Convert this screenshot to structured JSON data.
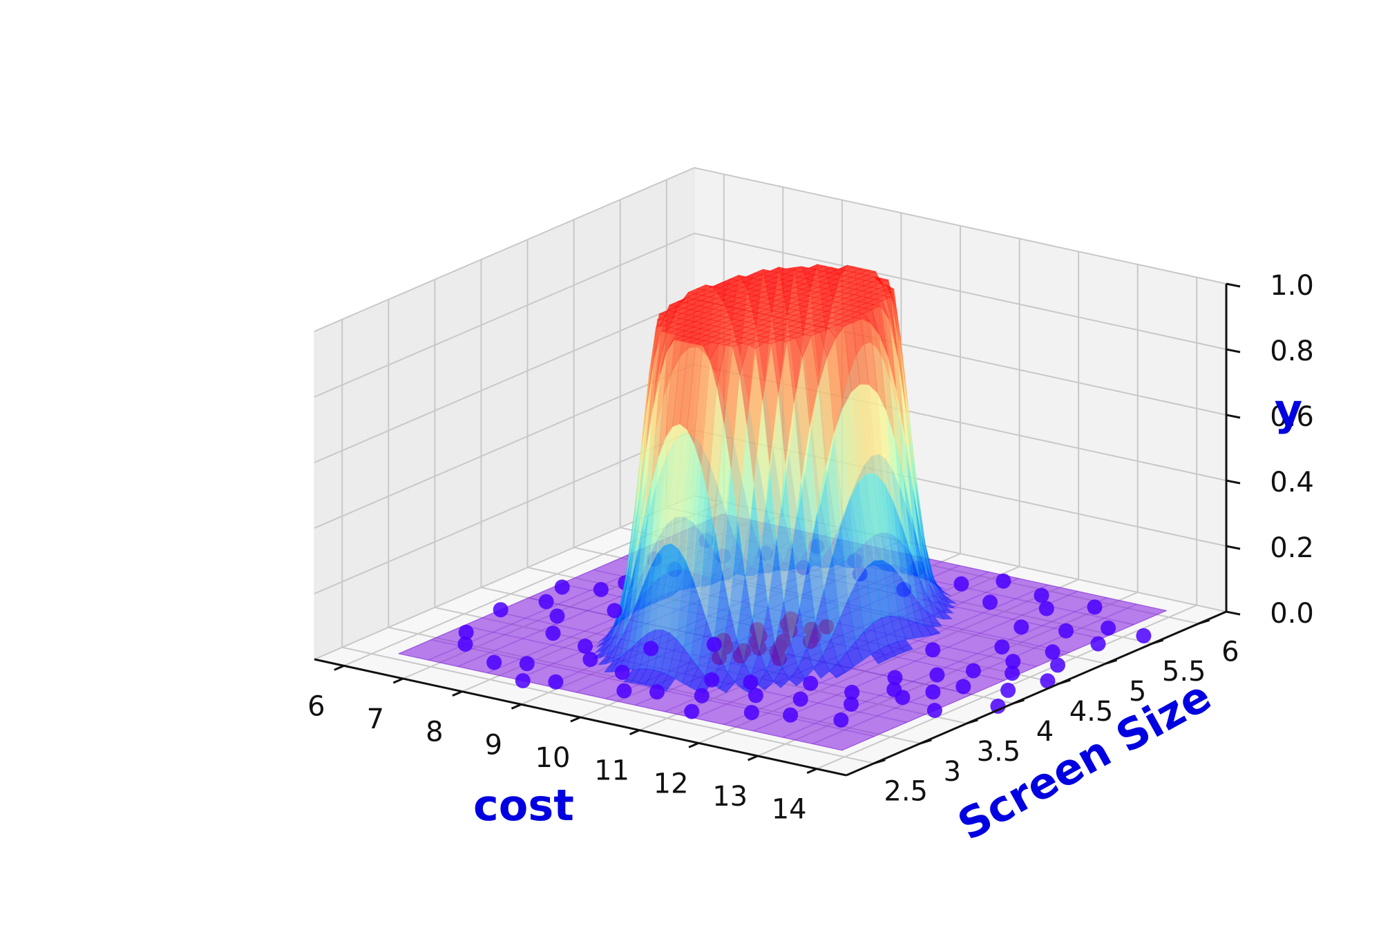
{
  "chart_data": {
    "type": "surface",
    "subtype": "3d-surface-with-scatter",
    "xlabel": "cost",
    "ylabel": "Screen Size",
    "zlabel": "y",
    "x_ticks": [
      "6",
      "7",
      "8",
      "9",
      "10",
      "11",
      "12",
      "13",
      "14"
    ],
    "y_ticks": [
      "2.5",
      "3",
      "3.5",
      "4",
      "4.5",
      "5",
      "5.5",
      "6"
    ],
    "z_ticks": [
      "0.0",
      "0.2",
      "0.4",
      "0.6",
      "0.8",
      "1.0"
    ],
    "xlim": [
      5.5,
      14.5
    ],
    "ylim": [
      2.2,
      6.3
    ],
    "zlim": [
      0,
      1
    ],
    "label_color": "#0000e0",
    "colormap": "rainbow",
    "grid": true,
    "surface": {
      "description": "probability surface peaking at 1 near cost 10, screen size 4.3, near 0 elsewhere",
      "peak": {
        "x": 10.0,
        "y": 4.3,
        "z": 1.0
      }
    },
    "series": [
      {
        "color": "#4b00ff",
        "points": [
          [
            6.6,
            4.0
          ],
          [
            6.7,
            5.1
          ],
          [
            6.8,
            5.6
          ],
          [
            6.4,
            4.3
          ],
          [
            6.3,
            3.7
          ],
          [
            6.5,
            3.2
          ],
          [
            6.8,
            3.0
          ],
          [
            7.0,
            4.6
          ],
          [
            7.2,
            5.0
          ],
          [
            7.4,
            5.4
          ],
          [
            7.5,
            3.5
          ],
          [
            7.6,
            4.1
          ],
          [
            7.6,
            2.8
          ],
          [
            8.0,
            2.9
          ],
          [
            8.2,
            3.4
          ],
          [
            8.4,
            2.6
          ],
          [
            8.6,
            3.2
          ],
          [
            8.8,
            2.7
          ],
          [
            9.0,
            3.6
          ],
          [
            9.3,
            3.1
          ],
          [
            9.6,
            3.9
          ],
          [
            9.8,
            2.8
          ],
          [
            10.2,
            2.9
          ],
          [
            10.5,
            3.3
          ],
          [
            10.8,
            3.0
          ],
          [
            11.0,
            3.4
          ],
          [
            11.1,
            2.7
          ],
          [
            11.4,
            3.2
          ],
          [
            11.8,
            2.9
          ],
          [
            12.0,
            3.3
          ],
          [
            12.3,
            3.0
          ],
          [
            12.4,
            3.6
          ],
          [
            12.5,
            4.0
          ],
          [
            12.7,
            3.4
          ],
          [
            12.8,
            3.8
          ],
          [
            12.9,
            4.2
          ],
          [
            13.0,
            3.1
          ],
          [
            13.1,
            3.7
          ],
          [
            13.2,
            4.4
          ],
          [
            13.3,
            3.9
          ],
          [
            13.4,
            4.7
          ],
          [
            13.5,
            4.1
          ],
          [
            13.6,
            5.0
          ],
          [
            13.7,
            4.5
          ],
          [
            13.8,
            3.6
          ],
          [
            13.9,
            5.3
          ],
          [
            14.0,
            4.8
          ],
          [
            14.1,
            4.2
          ],
          [
            14.2,
            5.6
          ],
          [
            13.6,
            5.6
          ],
          [
            12.9,
            5.9
          ],
          [
            12.4,
            5.7
          ],
          [
            12.0,
            5.9
          ],
          [
            11.6,
            5.6
          ],
          [
            11.2,
            6.0
          ],
          [
            10.8,
            5.8
          ],
          [
            10.3,
            5.5
          ],
          [
            9.9,
            5.9
          ],
          [
            9.4,
            5.6
          ],
          [
            9.0,
            5.8
          ],
          [
            8.6,
            5.5
          ],
          [
            8.2,
            5.9
          ],
          [
            7.8,
            5.6
          ],
          [
            12.6,
            5.3
          ],
          [
            12.9,
            4.9
          ],
          [
            13.2,
            5.4
          ],
          [
            12.2,
            4.6
          ],
          [
            6.9,
            4.4
          ],
          [
            7.1,
            3.8
          ],
          [
            14.3,
            4.5
          ],
          [
            14.4,
            3.9
          ],
          [
            11.7,
            3.6
          ]
        ]
      },
      {
        "color": "#e0005a",
        "points": [
          [
            9.6,
            4.0
          ],
          [
            9.7,
            4.3
          ],
          [
            9.8,
            3.9
          ],
          [
            9.9,
            4.5
          ],
          [
            10.0,
            4.1
          ],
          [
            10.1,
            4.4
          ],
          [
            10.2,
            3.8
          ],
          [
            10.3,
            4.2
          ],
          [
            10.4,
            4.6
          ],
          [
            10.5,
            4.0
          ],
          [
            10.6,
            4.3
          ],
          [
            10.7,
            3.9
          ],
          [
            9.9,
            4.2
          ],
          [
            10.1,
            3.9
          ],
          [
            10.3,
            4.5
          ],
          [
            10.5,
            4.4
          ],
          [
            10.2,
            4.0
          ],
          [
            10.0,
            3.7
          ],
          [
            10.4,
            4.1
          ],
          [
            9.8,
            4.6
          ]
        ]
      }
    ]
  }
}
